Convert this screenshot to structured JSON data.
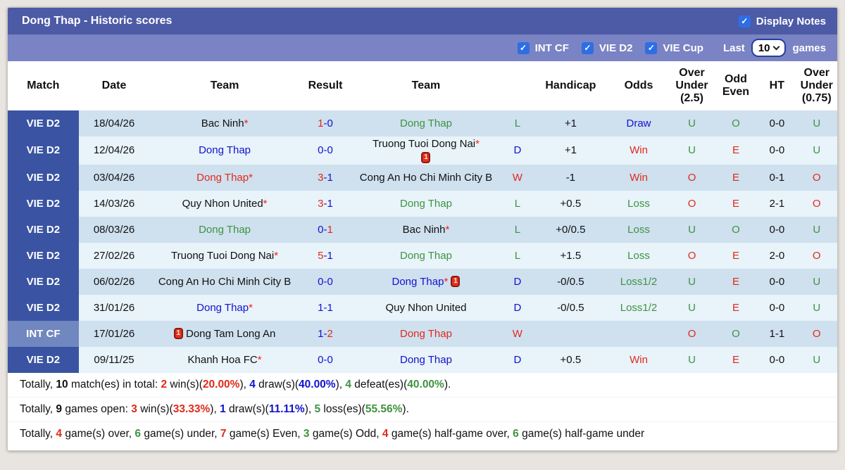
{
  "header": {
    "title": "Dong Thap - Historic scores",
    "display_notes_label": "Display Notes",
    "display_notes_checked": true
  },
  "filters": {
    "items": [
      {
        "label": "INT CF",
        "checked": true
      },
      {
        "label": "VIE D2",
        "checked": true
      },
      {
        "label": "VIE Cup",
        "checked": true
      }
    ],
    "last_label": "Last",
    "last_value": "10",
    "games_label": "games"
  },
  "table": {
    "headers": {
      "match": "Match",
      "date": "Date",
      "team1": "Team",
      "result": "Result",
      "team2": "Team",
      "letter": "",
      "handicap": "Handicap",
      "odds": "Odds",
      "ou25": "Over\nUnder\n(2.5)",
      "oddeven": "Odd\nEven",
      "ht": "HT",
      "ou075": "Over\nUnder\n(0.75)"
    },
    "rows": [
      {
        "league": "VIE D2",
        "league_style": "vie",
        "date": "18/04/26",
        "home": {
          "name": "Bac Ninh",
          "color": "black",
          "star": true
        },
        "score": {
          "home": "1",
          "away": "0",
          "home_color": "red",
          "away_color": "blue"
        },
        "away": {
          "name": "Dong Thap",
          "color": "green"
        },
        "letter": {
          "text": "L",
          "color": "green"
        },
        "handicap": "+1",
        "odds": {
          "text": "Draw",
          "color": "blue"
        },
        "ou25": {
          "text": "U",
          "color": "green"
        },
        "oddeven": {
          "text": "O",
          "color": "green"
        },
        "ht": "0-0",
        "ou075": {
          "text": "U",
          "color": "green"
        }
      },
      {
        "league": "VIE D2",
        "league_style": "vie",
        "date": "12/04/26",
        "home": {
          "name": "Dong Thap",
          "color": "blue"
        },
        "score": {
          "home": "0",
          "away": "0",
          "home_color": "blue",
          "away_color": "blue"
        },
        "away": {
          "name": "Truong Tuoi Dong Nai",
          "color": "black",
          "star": true,
          "card": "below"
        },
        "letter": {
          "text": "D",
          "color": "blue"
        },
        "handicap": "+1",
        "odds": {
          "text": "Win",
          "color": "red"
        },
        "ou25": {
          "text": "U",
          "color": "green"
        },
        "oddeven": {
          "text": "E",
          "color": "red"
        },
        "ht": "0-0",
        "ou075": {
          "text": "U",
          "color": "green"
        }
      },
      {
        "league": "VIE D2",
        "league_style": "vie",
        "date": "03/04/26",
        "home": {
          "name": "Dong Thap",
          "color": "red",
          "star": true
        },
        "score": {
          "home": "3",
          "away": "1",
          "home_color": "red",
          "away_color": "blue"
        },
        "away": {
          "name": "Cong An Ho Chi Minh City B",
          "color": "black"
        },
        "letter": {
          "text": "W",
          "color": "red"
        },
        "handicap": "-1",
        "odds": {
          "text": "Win",
          "color": "red"
        },
        "ou25": {
          "text": "O",
          "color": "red"
        },
        "oddeven": {
          "text": "E",
          "color": "red"
        },
        "ht": "0-1",
        "ou075": {
          "text": "O",
          "color": "red"
        }
      },
      {
        "league": "VIE D2",
        "league_style": "vie",
        "date": "14/03/26",
        "home": {
          "name": "Quy Nhon United",
          "color": "black",
          "star": true
        },
        "score": {
          "home": "3",
          "away": "1",
          "home_color": "red",
          "away_color": "blue"
        },
        "away": {
          "name": "Dong Thap",
          "color": "green"
        },
        "letter": {
          "text": "L",
          "color": "green"
        },
        "handicap": "+0.5",
        "odds": {
          "text": "Loss",
          "color": "green"
        },
        "ou25": {
          "text": "O",
          "color": "red"
        },
        "oddeven": {
          "text": "E",
          "color": "red"
        },
        "ht": "2-1",
        "ou075": {
          "text": "O",
          "color": "red"
        }
      },
      {
        "league": "VIE D2",
        "league_style": "vie",
        "date": "08/03/26",
        "home": {
          "name": "Dong Thap",
          "color": "green"
        },
        "score": {
          "home": "0",
          "away": "1",
          "home_color": "blue",
          "away_color": "red"
        },
        "away": {
          "name": "Bac Ninh",
          "color": "black",
          "star": true
        },
        "letter": {
          "text": "L",
          "color": "green"
        },
        "handicap": "+0/0.5",
        "odds": {
          "text": "Loss",
          "color": "green"
        },
        "ou25": {
          "text": "U",
          "color": "green"
        },
        "oddeven": {
          "text": "O",
          "color": "green"
        },
        "ht": "0-0",
        "ou075": {
          "text": "U",
          "color": "green"
        }
      },
      {
        "league": "VIE D2",
        "league_style": "vie",
        "date": "27/02/26",
        "home": {
          "name": "Truong Tuoi Dong Nai",
          "color": "black",
          "star": true
        },
        "score": {
          "home": "5",
          "away": "1",
          "home_color": "red",
          "away_color": "blue"
        },
        "away": {
          "name": "Dong Thap",
          "color": "green"
        },
        "letter": {
          "text": "L",
          "color": "green"
        },
        "handicap": "+1.5",
        "odds": {
          "text": "Loss",
          "color": "green"
        },
        "ou25": {
          "text": "O",
          "color": "red"
        },
        "oddeven": {
          "text": "E",
          "color": "red"
        },
        "ht": "2-0",
        "ou075": {
          "text": "O",
          "color": "red"
        }
      },
      {
        "league": "VIE D2",
        "league_style": "vie",
        "date": "06/02/26",
        "home": {
          "name": "Cong An Ho Chi Minh City B",
          "color": "black"
        },
        "score": {
          "home": "0",
          "away": "0",
          "home_color": "blue",
          "away_color": "blue"
        },
        "away": {
          "name": "Dong Thap",
          "color": "blue",
          "star": true,
          "card": "after"
        },
        "letter": {
          "text": "D",
          "color": "blue"
        },
        "handicap": "-0/0.5",
        "odds": {
          "text": "Loss1/2",
          "color": "green"
        },
        "ou25": {
          "text": "U",
          "color": "green"
        },
        "oddeven": {
          "text": "E",
          "color": "red"
        },
        "ht": "0-0",
        "ou075": {
          "text": "U",
          "color": "green"
        }
      },
      {
        "league": "VIE D2",
        "league_style": "vie",
        "date": "31/01/26",
        "home": {
          "name": "Dong Thap",
          "color": "blue",
          "star": true
        },
        "score": {
          "home": "1",
          "away": "1",
          "home_color": "blue",
          "away_color": "blue"
        },
        "away": {
          "name": "Quy Nhon United",
          "color": "black"
        },
        "letter": {
          "text": "D",
          "color": "blue"
        },
        "handicap": "-0/0.5",
        "odds": {
          "text": "Loss1/2",
          "color": "green"
        },
        "ou25": {
          "text": "U",
          "color": "green"
        },
        "oddeven": {
          "text": "E",
          "color": "red"
        },
        "ht": "0-0",
        "ou075": {
          "text": "U",
          "color": "green"
        }
      },
      {
        "league": "INT CF",
        "league_style": "int",
        "date": "17/01/26",
        "home": {
          "name": "Dong Tam Long An",
          "color": "black",
          "card": "before"
        },
        "score": {
          "home": "1",
          "away": "2",
          "home_color": "blue",
          "away_color": "red"
        },
        "away": {
          "name": "Dong Thap",
          "color": "red"
        },
        "letter": {
          "text": "W",
          "color": "red"
        },
        "handicap": "",
        "odds": {
          "text": "",
          "color": "black"
        },
        "ou25": {
          "text": "O",
          "color": "red"
        },
        "oddeven": {
          "text": "O",
          "color": "green"
        },
        "ht": "1-1",
        "ou075": {
          "text": "O",
          "color": "red"
        }
      },
      {
        "league": "VIE D2",
        "league_style": "vie",
        "date": "09/11/25",
        "home": {
          "name": "Khanh Hoa FC",
          "color": "black",
          "star": true
        },
        "score": {
          "home": "0",
          "away": "0",
          "home_color": "blue",
          "away_color": "blue"
        },
        "away": {
          "name": "Dong Thap",
          "color": "blue"
        },
        "letter": {
          "text": "D",
          "color": "blue"
        },
        "handicap": "+0.5",
        "odds": {
          "text": "Win",
          "color": "red"
        },
        "ou25": {
          "text": "U",
          "color": "green"
        },
        "oddeven": {
          "text": "E",
          "color": "red"
        },
        "ht": "0-0",
        "ou075": {
          "text": "U",
          "color": "green"
        }
      }
    ]
  },
  "summary": {
    "lines": [
      [
        {
          "t": "Totally, ",
          "c": "black"
        },
        {
          "t": "10",
          "c": "black",
          "b": 1
        },
        {
          "t": " match(es) in total: ",
          "c": "black"
        },
        {
          "t": "2",
          "c": "red",
          "b": 1
        },
        {
          "t": " win(s)(",
          "c": "black"
        },
        {
          "t": "20.00%",
          "c": "red",
          "b": 1
        },
        {
          "t": "), ",
          "c": "black"
        },
        {
          "t": "4",
          "c": "blue",
          "b": 1
        },
        {
          "t": " draw(s)(",
          "c": "black"
        },
        {
          "t": "40.00%",
          "c": "blue",
          "b": 1
        },
        {
          "t": "), ",
          "c": "black"
        },
        {
          "t": "4",
          "c": "green",
          "b": 1
        },
        {
          "t": " defeat(es)(",
          "c": "black"
        },
        {
          "t": "40.00%",
          "c": "green",
          "b": 1
        },
        {
          "t": ").",
          "c": "black"
        }
      ],
      [
        {
          "t": "Totally, ",
          "c": "black"
        },
        {
          "t": "9",
          "c": "black",
          "b": 1
        },
        {
          "t": " games open: ",
          "c": "black"
        },
        {
          "t": "3",
          "c": "red",
          "b": 1
        },
        {
          "t": " win(s)(",
          "c": "black"
        },
        {
          "t": "33.33%",
          "c": "red",
          "b": 1
        },
        {
          "t": "), ",
          "c": "black"
        },
        {
          "t": "1",
          "c": "blue",
          "b": 1
        },
        {
          "t": " draw(s)(",
          "c": "black"
        },
        {
          "t": "11.11%",
          "c": "blue",
          "b": 1
        },
        {
          "t": "), ",
          "c": "black"
        },
        {
          "t": "5",
          "c": "green",
          "b": 1
        },
        {
          "t": " loss(es)(",
          "c": "black"
        },
        {
          "t": "55.56%",
          "c": "green",
          "b": 1
        },
        {
          "t": ").",
          "c": "black"
        }
      ],
      [
        {
          "t": "Totally, ",
          "c": "black"
        },
        {
          "t": "4",
          "c": "red",
          "b": 1
        },
        {
          "t": " game(s) over, ",
          "c": "black"
        },
        {
          "t": "6",
          "c": "green",
          "b": 1
        },
        {
          "t": " game(s) under, ",
          "c": "black"
        },
        {
          "t": "7",
          "c": "red",
          "b": 1
        },
        {
          "t": " game(s) Even, ",
          "c": "black"
        },
        {
          "t": "3",
          "c": "green",
          "b": 1
        },
        {
          "t": " game(s) Odd, ",
          "c": "black"
        },
        {
          "t": "4",
          "c": "red",
          "b": 1
        },
        {
          "t": " game(s) half-game over, ",
          "c": "black"
        },
        {
          "t": "6",
          "c": "green",
          "b": 1
        },
        {
          "t": " game(s) half-game under",
          "c": "black"
        }
      ]
    ]
  },
  "colors": {
    "title_bar": "#4d5aa6",
    "filter_bar": "#7a83c3",
    "badge": "#3a54a3",
    "badge_int": "#7187c0",
    "row_odd": "#cfe0ef",
    "row_even": "#e8f3fa",
    "red": "#e02a1a",
    "blue": "#1113cc",
    "green": "#3f9340",
    "cb_blue": "#2e6ee5"
  }
}
